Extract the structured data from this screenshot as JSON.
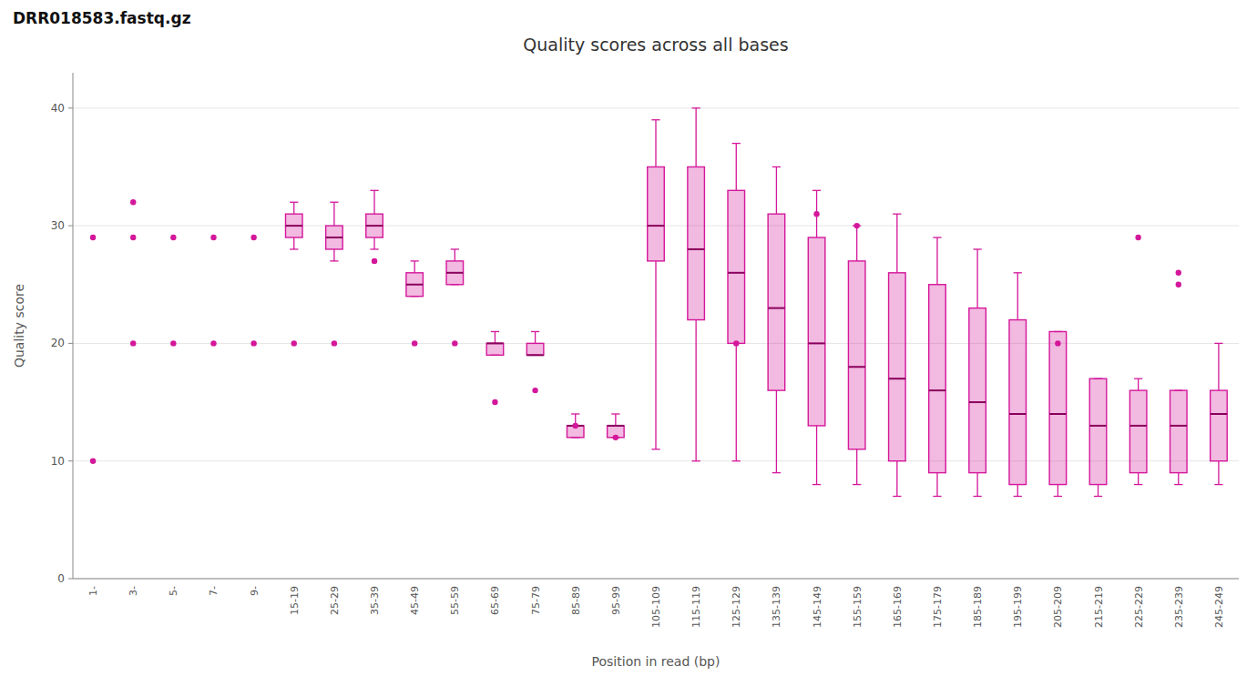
{
  "chart_data": {
    "type": "box",
    "title": "Quality scores across all bases",
    "subtitle": "DRR018583.fastq.gz",
    "x_label": "Position in read (bp)",
    "y_label": "Quality score",
    "color": "#d4179a",
    "grid": true,
    "ylim": [
      0,
      43
    ],
    "yticks": [
      0,
      10,
      20,
      30,
      40
    ],
    "categories": [
      "1-",
      "3-",
      "5-",
      "7-",
      "9-",
      "15-19",
      "25-29",
      "35-39",
      "45-49",
      "55-59",
      "65-69",
      "75-79",
      "85-89",
      "95-99",
      "105-109",
      "115-119",
      "125-129",
      "135-139",
      "145-149",
      "155-159",
      "165-169",
      "175-179",
      "185-189",
      "195-199",
      "205-209",
      "215-219",
      "225-229",
      "235-239",
      "245-249"
    ],
    "boxes": [
      {
        "median": 29,
        "fliers": [
          10
        ]
      },
      {
        "median": 29,
        "fliers": [
          20,
          32
        ]
      },
      {
        "median": 29,
        "fliers": [
          20
        ]
      },
      {
        "median": 29,
        "fliers": [
          20
        ]
      },
      {
        "median": 29,
        "fliers": [
          20
        ]
      },
      {
        "median": 30,
        "q1": 29,
        "q3": 31,
        "whislo": 28,
        "whishi": 32,
        "fliers": [
          20
        ]
      },
      {
        "median": 29,
        "q1": 28,
        "q3": 30,
        "whislo": 27,
        "whishi": 32,
        "fliers": [
          20
        ]
      },
      {
        "median": 30,
        "q1": 29,
        "q3": 31,
        "whislo": 28,
        "whishi": 33,
        "fliers": [
          27
        ]
      },
      {
        "median": 25,
        "q1": 24,
        "q3": 26,
        "whislo": 24,
        "whishi": 27,
        "fliers": [
          20
        ]
      },
      {
        "median": 26,
        "q1": 25,
        "q3": 27,
        "whislo": 25,
        "whishi": 28,
        "fliers": [
          20
        ]
      },
      {
        "median": 20,
        "q1": 19,
        "q3": 20,
        "whislo": 19,
        "whishi": 21,
        "fliers": [
          15
        ]
      },
      {
        "median": 19,
        "q1": 19,
        "q3": 20,
        "whislo": 19,
        "whishi": 21,
        "fliers": [
          16
        ]
      },
      {
        "median": 13,
        "q1": 12,
        "q3": 13,
        "whislo": 12,
        "whishi": 14,
        "fliers": [
          13
        ]
      },
      {
        "median": 13,
        "q1": 12,
        "q3": 13,
        "whislo": 12,
        "whishi": 14,
        "fliers": [
          12
        ]
      },
      {
        "median": 30,
        "q1": 27,
        "q3": 35,
        "whislo": 11,
        "whishi": 39,
        "fliers": []
      },
      {
        "median": 28,
        "q1": 22,
        "q3": 35,
        "whislo": 10,
        "whishi": 40,
        "fliers": []
      },
      {
        "median": 26,
        "q1": 20,
        "q3": 33,
        "whislo": 10,
        "whishi": 37,
        "fliers": [
          20
        ]
      },
      {
        "median": 23,
        "q1": 16,
        "q3": 31,
        "whislo": 9,
        "whishi": 35,
        "fliers": []
      },
      {
        "median": 20,
        "q1": 13,
        "q3": 29,
        "whislo": 8,
        "whishi": 33,
        "fliers": [
          31
        ]
      },
      {
        "median": 18,
        "q1": 11,
        "q3": 27,
        "whislo": 8,
        "whishi": 30,
        "fliers": [
          30
        ]
      },
      {
        "median": 17,
        "q1": 10,
        "q3": 26,
        "whislo": 7,
        "whishi": 31,
        "fliers": []
      },
      {
        "median": 16,
        "q1": 9,
        "q3": 25,
        "whislo": 7,
        "whishi": 29,
        "fliers": []
      },
      {
        "median": 15,
        "q1": 9,
        "q3": 23,
        "whislo": 7,
        "whishi": 28,
        "fliers": []
      },
      {
        "median": 14,
        "q1": 8,
        "q3": 22,
        "whislo": 7,
        "whishi": 26,
        "fliers": []
      },
      {
        "median": 14,
        "q1": 8,
        "q3": 21,
        "whislo": 7,
        "whishi": 21,
        "fliers": [
          20
        ]
      },
      {
        "median": 13,
        "q1": 8,
        "q3": 17,
        "whislo": 7,
        "whishi": 17,
        "fliers": []
      },
      {
        "median": 13,
        "q1": 9,
        "q3": 16,
        "whislo": 8,
        "whishi": 17,
        "fliers": [
          29
        ]
      },
      {
        "median": 13,
        "q1": 9,
        "q3": 16,
        "whislo": 8,
        "whishi": 16,
        "fliers": [
          26,
          25
        ]
      },
      {
        "median": 14,
        "q1": 10,
        "q3": 16,
        "whislo": 8,
        "whishi": 20,
        "fliers": []
      }
    ]
  }
}
